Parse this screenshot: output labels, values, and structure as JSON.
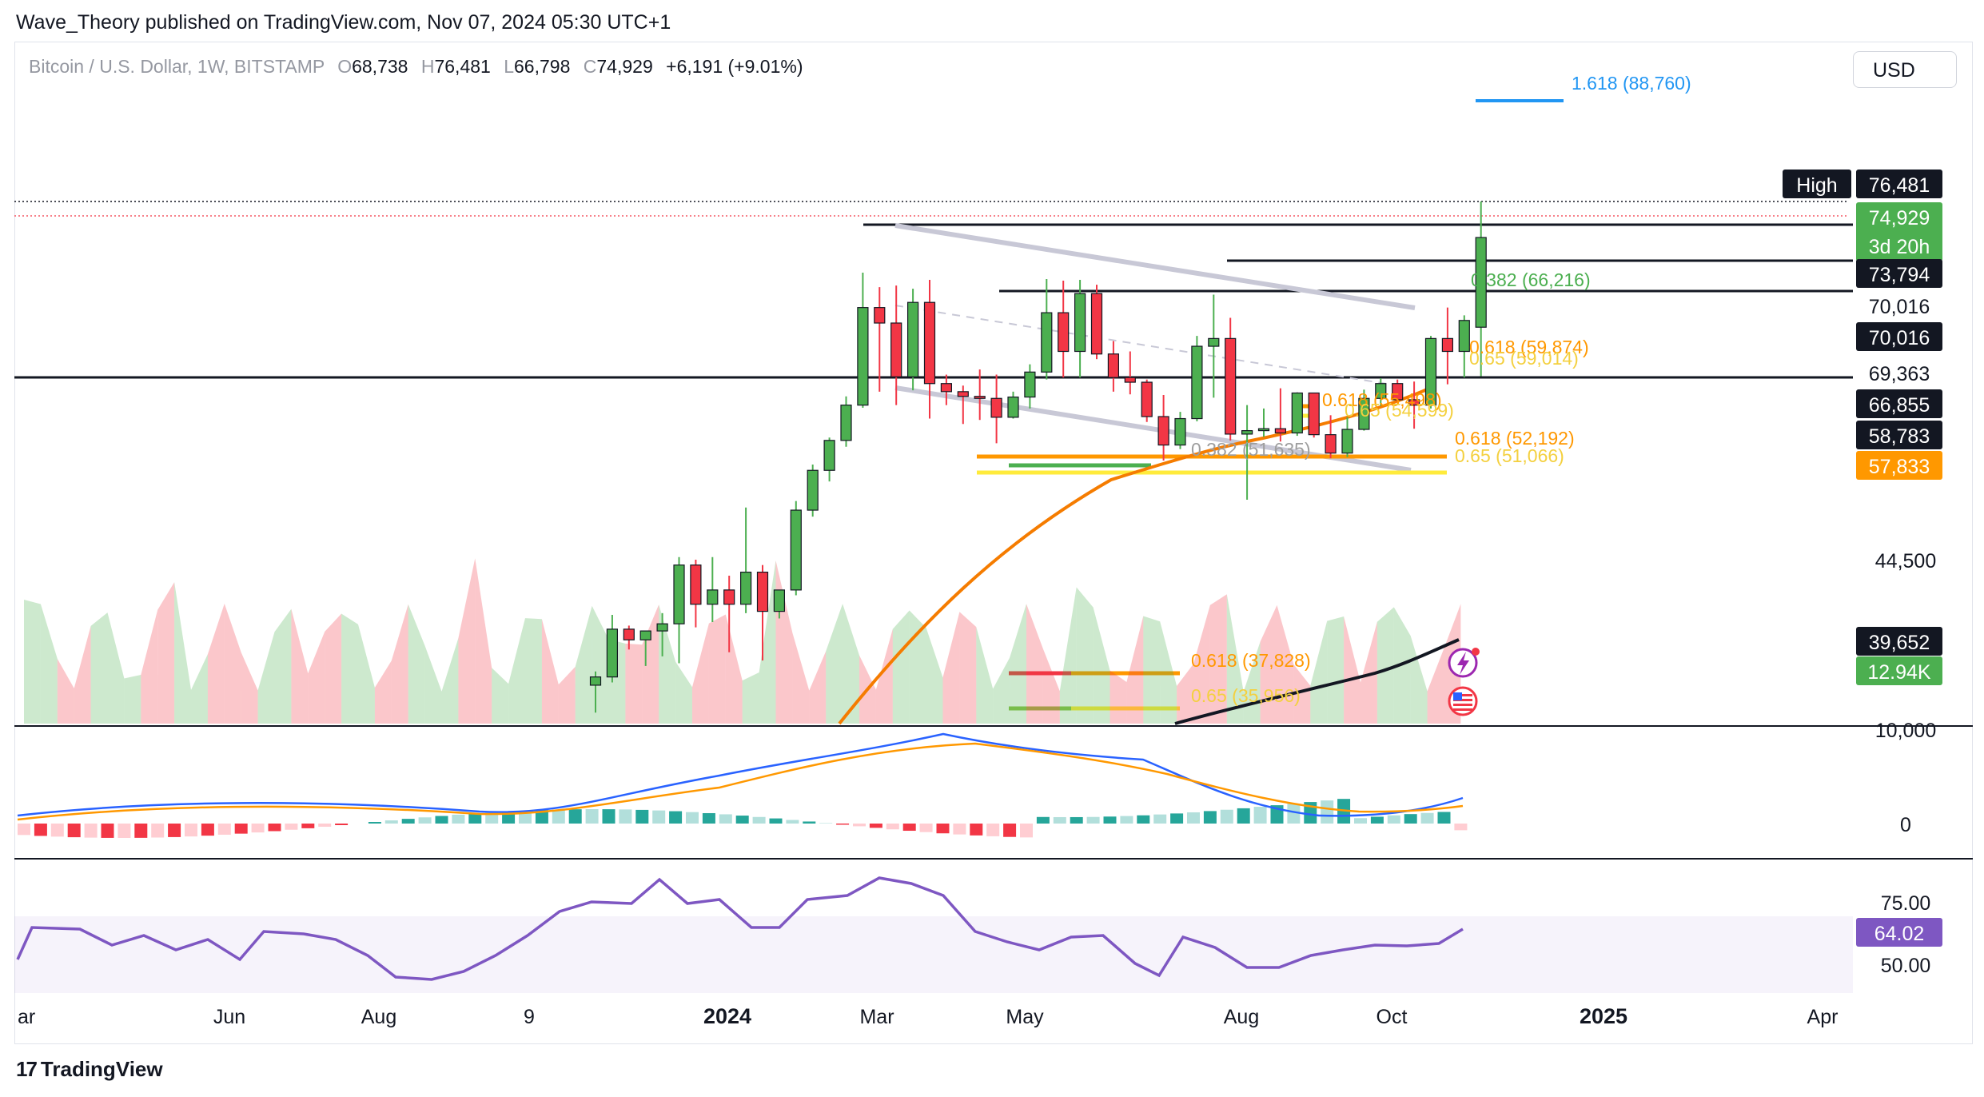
{
  "header": {
    "publish_line": "Wave_Theory published on TradingView.com, Nov 07, 2024 05:30 UTC+1"
  },
  "legend": {
    "symbol": "Bitcoin / U.S. Dollar, 1W, BITSTAMP",
    "o_key": "O",
    "o_val": "68,738",
    "h_key": "H",
    "h_val": "76,481",
    "l_key": "L",
    "l_val": "66,798",
    "c_key": "C",
    "c_val": "74,929",
    "change": "+6,191 (+9.01%)"
  },
  "currency_button": "USD",
  "footer": {
    "logo_text": "TradingView",
    "logo_glyph": "17"
  },
  "colors": {
    "up": "#26a69a",
    "green": "#4caf50",
    "down": "#f23645",
    "orange": "#ff9800",
    "rsi": "#7e57c2",
    "macd": "#2962ff"
  },
  "icons": [
    "flash-icon",
    "us-flag-icon",
    "tradingview-logo-icon"
  ],
  "chart_data": {
    "type": "candlestick",
    "timeframe": "1W",
    "price_axis_ticks": [
      "44,500",
      "10,000",
      "0",
      "75.00",
      "50.00"
    ],
    "time_axis_labels": [
      "ar",
      "Jun",
      "Aug",
      "9",
      "2024",
      "Mar",
      "May",
      "Aug",
      "Oct",
      "2025",
      "Apr"
    ],
    "price_badges": [
      {
        "text": "76,481",
        "label": "High",
        "style": "dark"
      },
      {
        "text": "74,929",
        "sub": "3d 20h",
        "style": "green"
      },
      {
        "text": "73,794",
        "style": "dark"
      },
      {
        "text": "70,016",
        "style": "plain"
      },
      {
        "text": "70,016",
        "style": "dark"
      },
      {
        "text": "69,363",
        "style": "plain"
      },
      {
        "text": "66,855",
        "style": "dark"
      },
      {
        "text": "58,783",
        "style": "dark"
      },
      {
        "text": "57,833",
        "style": "orange"
      },
      {
        "text": "39,652",
        "style": "dark"
      },
      {
        "text": "12.94K",
        "style": "green"
      },
      {
        "text": "64.02",
        "style": "purple"
      }
    ],
    "fib_labels": [
      {
        "text": "1.618 (88,760)",
        "color": "#2196f3"
      },
      {
        "text": "0.382 (66,216)",
        "color": "#4caf50"
      },
      {
        "text": "0.618 (59,874)",
        "color": "#ff9800"
      },
      {
        "text": "0.65 (59,014)",
        "color": "#f4d03f"
      },
      {
        "text": "0.618 (55,498)",
        "color": "#ff9800"
      },
      {
        "text": "0.65 (54,599)",
        "color": "#f4d03f"
      },
      {
        "text": "0.382 (51,635)",
        "color": "#9e9e9e"
      },
      {
        "text": "0.618 (52,192)",
        "color": "#ff9800"
      },
      {
        "text": "0.65 (51,066)",
        "color": "#f4d03f"
      },
      {
        "text": "0.618 (37,828)",
        "color": "#ff9800"
      },
      {
        "text": "0.65 (35,956)",
        "color": "#f4d03f"
      }
    ],
    "candles_ohlc_approx": [
      [
        36800,
        37800,
        34800,
        37400
      ],
      [
        37400,
        41400,
        37000,
        40600
      ],
      [
        40600,
        40800,
        39400,
        40000
      ],
      [
        40000,
        40500,
        38200,
        40500
      ],
      [
        40500,
        41500,
        38900,
        40900
      ],
      [
        40900,
        44700,
        38400,
        44200
      ],
      [
        44200,
        44500,
        40700,
        42000
      ],
      [
        42000,
        44700,
        41000,
        42800
      ],
      [
        42800,
        43600,
        39200,
        42000
      ],
      [
        42000,
        48500,
        41500,
        43800
      ],
      [
        43800,
        44200,
        38600,
        41600
      ],
      [
        41600,
        42700,
        41200,
        42800
      ],
      [
        42800,
        49000,
        42500,
        48300
      ],
      [
        48300,
        52800,
        47800,
        51800
      ],
      [
        51800,
        57500,
        50500,
        57000
      ],
      [
        57000,
        63800,
        55900,
        62500
      ],
      [
        62500,
        72700,
        62100,
        69500
      ],
      [
        69500,
        70900,
        64500,
        68900
      ],
      [
        68900,
        71100,
        62500,
        66700
      ],
      [
        66700,
        70700,
        64700,
        69700
      ],
      [
        69700,
        71800,
        60500,
        65700
      ],
      [
        65700,
        66900,
        62500,
        64500
      ],
      [
        64500,
        65400,
        59700,
        63800
      ],
      [
        63800,
        67100,
        60300,
        63500
      ],
      [
        63500,
        66900,
        56500,
        60700
      ],
      [
        60700,
        64500,
        60500,
        63700
      ],
      [
        63700,
        67300,
        62000,
        67000
      ],
      [
        67000,
        71900,
        66300,
        69300
      ],
      [
        69300,
        71700,
        66600,
        67800
      ],
      [
        67800,
        71800,
        66600,
        70100
      ],
      [
        70100,
        71200,
        67500,
        67700
      ],
      [
        67700,
        68200,
        64500,
        66600
      ],
      [
        66600,
        67800,
        64100,
        65900
      ],
      [
        65900,
        66300,
        60000,
        60800
      ],
      [
        60800,
        64000,
        53500,
        56200
      ],
      [
        56200,
        61500,
        55500,
        60500
      ],
      [
        60500,
        68400,
        60100,
        68000
      ],
      [
        68000,
        70000,
        63600,
        68300
      ],
      [
        68300,
        69100,
        57000,
        58100
      ],
      [
        58100,
        62500,
        49100,
        58700
      ],
      [
        58700,
        62000,
        57600,
        59000
      ],
      [
        59000,
        65000,
        56800,
        58300
      ],
      [
        58300,
        64400,
        57800,
        64300
      ],
      [
        64300,
        61500,
        57500,
        58000
      ],
      [
        58000,
        61000,
        53900,
        54800
      ],
      [
        54800,
        60700,
        54100,
        58900
      ],
      [
        58900,
        64800,
        58700,
        63500
      ],
      [
        63500,
        66500,
        62400,
        65700
      ],
      [
        65700,
        66300,
        63000,
        63300
      ],
      [
        63300,
        66000,
        59000,
        62500
      ],
      [
        62500,
        68400,
        62000,
        68300
      ],
      [
        68300,
        69500,
        65600,
        67800
      ],
      [
        67800,
        69200,
        66600,
        69000
      ],
      [
        68738,
        76481,
        66798,
        74929
      ]
    ],
    "volume_unit_badge": "12.94K",
    "rsi_last": "64.02"
  }
}
